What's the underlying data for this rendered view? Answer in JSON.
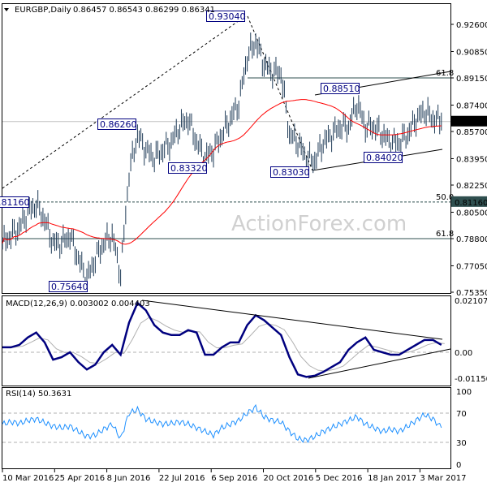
{
  "header": {
    "symbol": "EURGBP,Daily",
    "ohlc": "0.86457 0.86543 0.86299 0.86341"
  },
  "watermark": "ActionForex.com",
  "colors": {
    "bars": "#1f3b57",
    "ma": "#ff0000",
    "macd": "#00007f",
    "signal": "#b0b0b0",
    "rsi": "#1e90ff",
    "price_tag": "#000000",
    "level_tag": "#2f4f4f",
    "label_border": "#000080"
  },
  "chart_data": [
    {
      "type": "ohlc-bar",
      "title": "EURGBP,Daily",
      "y_ticks": [
        "0.92600",
        "0.90850",
        "0.89150",
        "0.87400",
        "0.85700",
        "0.83950",
        "0.82250",
        "0.80500",
        "0.78800",
        "0.77050",
        "0.75350"
      ],
      "ylim": [
        0.7535,
        0.926
      ],
      "x_ticks": [
        "10 Mar 2016",
        "25 Apr 2016",
        "8 Jun 2016",
        "22 Jul 2016",
        "6 Sep 2016",
        "20 Oct 2016",
        "5 Dec 2016",
        "18 Jan 2017",
        "3 Mar 2017"
      ],
      "weekly_close": [
        0.785,
        0.79,
        0.795,
        0.805,
        0.81,
        0.8,
        0.785,
        0.785,
        0.79,
        0.775,
        0.762,
        0.775,
        0.785,
        0.79,
        0.765,
        0.83,
        0.855,
        0.845,
        0.84,
        0.845,
        0.85,
        0.86,
        0.865,
        0.85,
        0.84,
        0.845,
        0.855,
        0.865,
        0.875,
        0.905,
        0.915,
        0.9,
        0.895,
        0.895,
        0.855,
        0.85,
        0.84,
        0.838,
        0.85,
        0.855,
        0.86,
        0.86,
        0.875,
        0.86,
        0.86,
        0.855,
        0.85,
        0.85,
        0.855,
        0.865,
        0.87,
        0.865,
        0.8634
      ],
      "current_price": "0.86341",
      "level_tag": "0.81160",
      "swing_labels": [
        "0.93040",
        "0.86260",
        "0.83320",
        "0.83030",
        "0.88510",
        "0.84020",
        "0.81160",
        "0.75640"
      ],
      "fib_levels": [
        {
          "label": "61.8",
          "value": 0.8915
        },
        {
          "label": "50.0",
          "value": 0.8116
        },
        {
          "label": "61.8",
          "value": 0.788
        }
      ],
      "moving_average": "red line"
    },
    {
      "type": "line",
      "title": "MACD(12,26,9) 0.003002 0.004403",
      "y_ticks": [
        "0.021074",
        "0.00",
        "-0.011507"
      ],
      "ylim": [
        -0.011507,
        0.021074
      ],
      "macd_weekly": [
        0.002,
        0.002,
        0.003,
        0.006,
        0.008,
        0.004,
        -0.003,
        -0.002,
        0,
        -0.004,
        -0.007,
        -0.005,
        0,
        0.003,
        -0.001,
        0.012,
        0.02,
        0.017,
        0.011,
        0.008,
        0.007,
        0.007,
        0.009,
        0.008,
        -0.001,
        -0.001,
        0.002,
        0.004,
        0.004,
        0.011,
        0.015,
        0.013,
        0.01,
        0.007,
        -0.002,
        -0.009,
        -0.01,
        -0.0095,
        -0.008,
        -0.006,
        -0.004,
        0.001,
        0.004,
        0.006,
        0.001,
        0,
        -0.001,
        -0.001,
        0.001,
        0.003,
        0.005,
        0.005,
        0.003
      ]
    },
    {
      "type": "line",
      "title": "RSI(14) 50.3631",
      "y_ticks": [
        "100",
        "70",
        "30",
        "0"
      ],
      "ylim": [
        0,
        100
      ],
      "rsi_weekly": [
        55,
        58,
        56,
        60,
        62,
        57,
        52,
        50,
        52,
        45,
        38,
        40,
        48,
        55,
        35,
        70,
        75,
        62,
        58,
        55,
        56,
        58,
        55,
        50,
        45,
        40,
        50,
        55,
        60,
        70,
        78,
        65,
        60,
        58,
        45,
        35,
        33,
        38,
        45,
        50,
        55,
        60,
        65,
        55,
        50,
        45,
        48,
        45,
        52,
        60,
        68,
        62,
        50
      ]
    }
  ]
}
